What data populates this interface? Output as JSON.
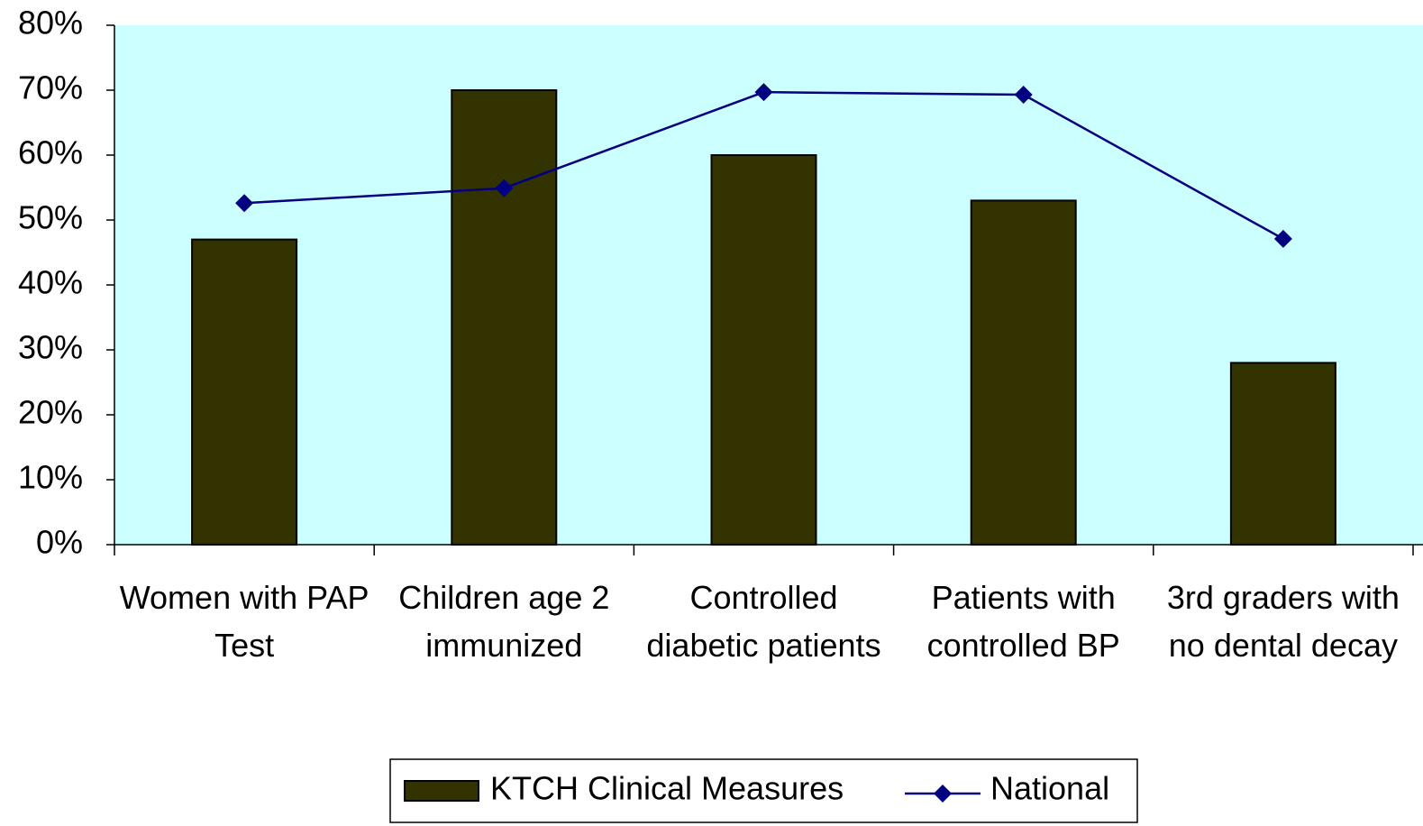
{
  "chart_data": {
    "type": "bar",
    "categories": [
      "Women with PAP Test",
      "Children age 2 immunized",
      "Controlled diabetic patients",
      "Patients with controlled BP",
      "3rd graders with no dental decay"
    ],
    "series": [
      {
        "name": "KTCH Clinical Measures",
        "type": "bar",
        "color": "#333300",
        "values": [
          47,
          70,
          60,
          53,
          28
        ]
      },
      {
        "name": "National",
        "type": "line",
        "color": "#000080",
        "values": [
          52.6,
          54.9,
          69.7,
          69.3,
          47.1
        ]
      }
    ],
    "ylim": [
      0,
      80
    ],
    "yticks": [
      {
        "value": 0,
        "label": "0%"
      },
      {
        "value": 10,
        "label": "10%"
      },
      {
        "value": 20,
        "label": "20%"
      },
      {
        "value": 30,
        "label": "30%"
      },
      {
        "value": 40,
        "label": "40%"
      },
      {
        "value": 50,
        "label": "50%"
      },
      {
        "value": 60,
        "label": "60%"
      },
      {
        "value": 70,
        "label": "70%"
      },
      {
        "value": 80,
        "label": "80%"
      }
    ],
    "background": "#ccffff",
    "legend": "bottom"
  }
}
